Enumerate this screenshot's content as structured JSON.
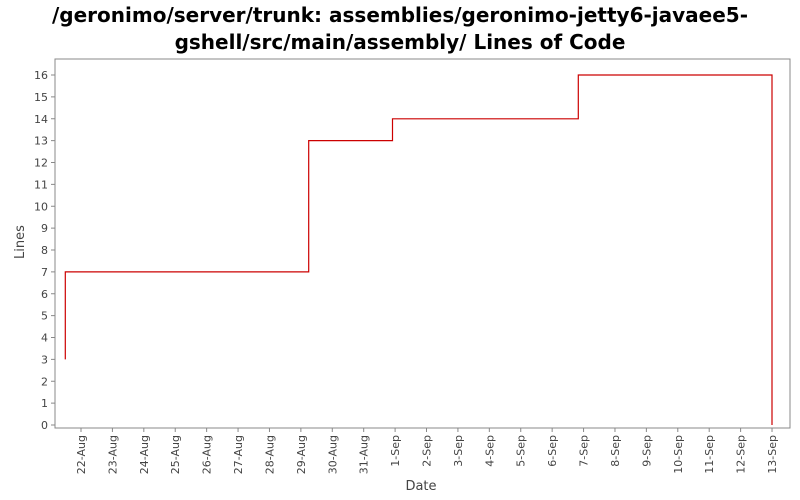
{
  "chart_data": {
    "type": "line",
    "title_line1": "/geronimo/server/trunk: assemblies/geronimo-jetty6-javaee5-",
    "title_line2": "gshell/src/main/assembly/ Lines of Code",
    "xlabel": "Date",
    "ylabel": "Lines",
    "ylim": [
      0,
      16.5
    ],
    "yticks": [
      0,
      1,
      2,
      3,
      4,
      5,
      6,
      7,
      8,
      9,
      10,
      11,
      12,
      13,
      14,
      15,
      16
    ],
    "x_categories": [
      "22-Aug",
      "23-Aug",
      "24-Aug",
      "25-Aug",
      "26-Aug",
      "27-Aug",
      "28-Aug",
      "29-Aug",
      "30-Aug",
      "31-Aug",
      "1-Sep",
      "2-Sep",
      "3-Sep",
      "4-Sep",
      "5-Sep",
      "6-Sep",
      "7-Sep",
      "8-Sep",
      "9-Sep",
      "10-Sep",
      "11-Sep",
      "12-Sep",
      "13-Sep"
    ],
    "step": true,
    "series_color": "#cc0000",
    "points": [
      {
        "x": "21-Aug 12:00",
        "y": 3
      },
      {
        "x": "21-Aug 12:00",
        "y": 7
      },
      {
        "x": "29-Aug 06:00",
        "y": 7
      },
      {
        "x": "29-Aug 06:00",
        "y": 13
      },
      {
        "x": "31-Aug 22:00",
        "y": 13
      },
      {
        "x": "31-Aug 22:00",
        "y": 14
      },
      {
        "x": "6-Sep 20:00",
        "y": 14
      },
      {
        "x": "6-Sep 20:00",
        "y": 16
      },
      {
        "x": "13-Sep 00:00",
        "y": 16
      },
      {
        "x": "13-Sep 00:00",
        "y": 0
      }
    ],
    "grid": false
  }
}
